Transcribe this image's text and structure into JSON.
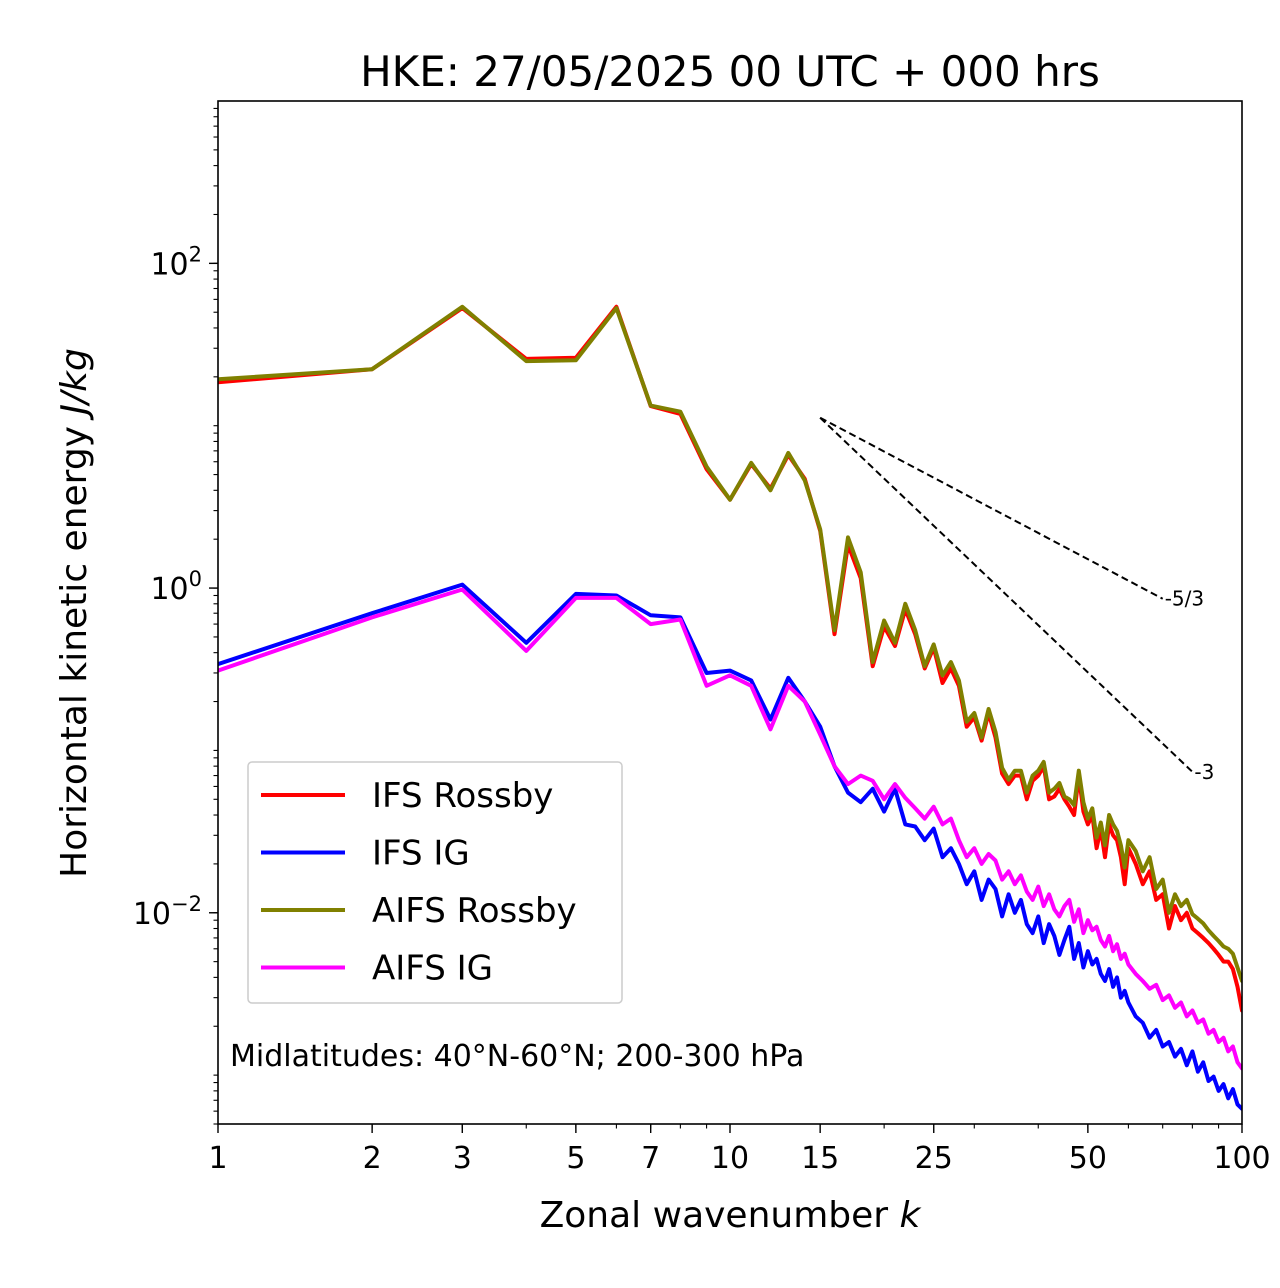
{
  "chart_data": {
    "type": "line",
    "title": "HKE: 27/05/2025 00 UTC + 000 hrs",
    "xlabel": "Zonal wavenumber ",
    "xlabel_italic": "k",
    "ylabel": "Horizontal kinetic energy ",
    "ylabel_italic": "J/kg",
    "xscale": "log",
    "yscale": "log",
    "xlim": [
      1,
      100
    ],
    "ylim": [
      0.0005,
      1000
    ],
    "x_ticks": [
      {
        "value": 1,
        "label": "1"
      },
      {
        "value": 2,
        "label": "2"
      },
      {
        "value": 3,
        "label": "3"
      },
      {
        "value": 5,
        "label": "5"
      },
      {
        "value": 7,
        "label": "7"
      },
      {
        "value": 10,
        "label": "10"
      },
      {
        "value": 15,
        "label": "15"
      },
      {
        "value": 25,
        "label": "25"
      },
      {
        "value": 50,
        "label": "50"
      },
      {
        "value": 100,
        "label": "100"
      }
    ],
    "y_ticks": [
      {
        "value": 0.01,
        "base": "10",
        "exp": "−2"
      },
      {
        "value": 1,
        "base": "10",
        "exp": "0"
      },
      {
        "value": 100,
        "base": "10",
        "exp": "2"
      }
    ],
    "grid": false,
    "legend_position": "lower-left",
    "annotation": "Midlatitudes: 40°N-60°N; 200-300 hPa",
    "reference_slopes": [
      {
        "label": "-5/3",
        "slope": -1.6667,
        "k_start": 15,
        "k_end": 70,
        "y_start": 11.2
      },
      {
        "label": "-3",
        "slope": -3,
        "k_start": 15,
        "k_end": 80,
        "y_start": 11.2
      }
    ],
    "series": [
      {
        "name": "IFS Rossby",
        "color": "#ff0000",
        "x": [
          1,
          2,
          3,
          4,
          5,
          6,
          7,
          8,
          9,
          10,
          11,
          12,
          13,
          14,
          15,
          16,
          17,
          18,
          19,
          20,
          21,
          22,
          23,
          24,
          25,
          26,
          27,
          28,
          29,
          30,
          31,
          32,
          33,
          34,
          35,
          36,
          37,
          38,
          39,
          40,
          41,
          42,
          43,
          44,
          45,
          46,
          47,
          48,
          49,
          50,
          51,
          52,
          53,
          54,
          55,
          56,
          57,
          58,
          59,
          60,
          62,
          64,
          66,
          68,
          70,
          72,
          74,
          76,
          78,
          80,
          82,
          84,
          86,
          88,
          90,
          92,
          94,
          96,
          98,
          100
        ],
        "values": [
          18.5,
          22.3,
          53.0,
          25.8,
          26.2,
          54.0,
          13.2,
          11.8,
          5.4,
          3.5,
          5.8,
          4.1,
          6.6,
          4.7,
          2.25,
          0.52,
          1.85,
          1.15,
          0.33,
          0.58,
          0.44,
          0.74,
          0.52,
          0.32,
          0.43,
          0.26,
          0.32,
          0.25,
          0.14,
          0.16,
          0.115,
          0.17,
          0.12,
          0.072,
          0.062,
          0.07,
          0.07,
          0.05,
          0.065,
          0.07,
          0.08,
          0.05,
          0.052,
          0.058,
          0.05,
          0.045,
          0.04,
          0.07,
          0.042,
          0.035,
          0.04,
          0.025,
          0.033,
          0.022,
          0.035,
          0.03,
          0.028,
          0.022,
          0.015,
          0.025,
          0.02,
          0.015,
          0.018,
          0.012,
          0.013,
          0.008,
          0.011,
          0.009,
          0.01,
          0.008,
          0.0075,
          0.007,
          0.0065,
          0.006,
          0.0055,
          0.005,
          0.005,
          0.0045,
          0.0035,
          0.0025
        ]
      },
      {
        "name": "IFS IG",
        "color": "#0000ff",
        "x": [
          1,
          2,
          3,
          4,
          5,
          6,
          7,
          8,
          9,
          10,
          11,
          12,
          13,
          14,
          15,
          16,
          17,
          18,
          19,
          20,
          21,
          22,
          23,
          24,
          25,
          26,
          27,
          28,
          29,
          30,
          31,
          32,
          33,
          34,
          35,
          36,
          37,
          38,
          39,
          40,
          41,
          42,
          43,
          44,
          45,
          46,
          47,
          48,
          49,
          50,
          51,
          52,
          53,
          54,
          55,
          56,
          57,
          58,
          59,
          60,
          62,
          64,
          66,
          68,
          70,
          72,
          74,
          76,
          78,
          80,
          82,
          84,
          86,
          88,
          90,
          92,
          94,
          96,
          98,
          100
        ],
        "values": [
          0.34,
          0.7,
          1.05,
          0.46,
          0.92,
          0.9,
          0.68,
          0.66,
          0.3,
          0.31,
          0.27,
          0.155,
          0.28,
          0.2,
          0.14,
          0.08,
          0.055,
          0.048,
          0.058,
          0.042,
          0.058,
          0.035,
          0.034,
          0.028,
          0.033,
          0.022,
          0.025,
          0.02,
          0.015,
          0.018,
          0.012,
          0.016,
          0.014,
          0.0095,
          0.013,
          0.01,
          0.012,
          0.0085,
          0.0075,
          0.0095,
          0.0065,
          0.0085,
          0.0072,
          0.0055,
          0.0068,
          0.0082,
          0.0052,
          0.0065,
          0.0046,
          0.0058,
          0.0048,
          0.0052,
          0.0042,
          0.0038,
          0.0045,
          0.0035,
          0.004,
          0.003,
          0.0033,
          0.0028,
          0.0023,
          0.0021,
          0.0017,
          0.0019,
          0.0015,
          0.0016,
          0.0013,
          0.00145,
          0.00115,
          0.0014,
          0.00105,
          0.0012,
          0.00092,
          0.00098,
          0.0008,
          0.00088,
          0.00072,
          0.00082,
          0.00066,
          0.00062
        ]
      },
      {
        "name": "AIFS Rossby",
        "color": "#808000",
        "x": [
          1,
          2,
          3,
          4,
          5,
          6,
          7,
          8,
          9,
          10,
          11,
          12,
          13,
          14,
          15,
          16,
          17,
          18,
          19,
          20,
          21,
          22,
          23,
          24,
          25,
          26,
          27,
          28,
          29,
          30,
          31,
          32,
          33,
          34,
          35,
          36,
          37,
          38,
          39,
          40,
          41,
          42,
          43,
          44,
          45,
          46,
          47,
          48,
          49,
          50,
          51,
          52,
          53,
          54,
          55,
          56,
          57,
          58,
          59,
          60,
          62,
          64,
          66,
          68,
          70,
          72,
          74,
          76,
          78,
          80,
          82,
          84,
          86,
          88,
          90,
          92,
          94,
          96,
          98,
          100
        ],
        "values": [
          19.3,
          22.3,
          54.0,
          25.0,
          25.3,
          53.0,
          13.3,
          12.2,
          5.6,
          3.5,
          5.9,
          4.0,
          6.8,
          4.6,
          2.3,
          0.55,
          2.05,
          1.25,
          0.35,
          0.63,
          0.46,
          0.8,
          0.55,
          0.33,
          0.45,
          0.29,
          0.35,
          0.27,
          0.15,
          0.17,
          0.12,
          0.18,
          0.13,
          0.078,
          0.066,
          0.075,
          0.075,
          0.055,
          0.07,
          0.075,
          0.085,
          0.055,
          0.058,
          0.063,
          0.052,
          0.05,
          0.046,
          0.075,
          0.048,
          0.038,
          0.044,
          0.029,
          0.036,
          0.026,
          0.04,
          0.035,
          0.032,
          0.026,
          0.019,
          0.028,
          0.024,
          0.018,
          0.022,
          0.014,
          0.016,
          0.01,
          0.013,
          0.011,
          0.012,
          0.0098,
          0.0092,
          0.0086,
          0.0078,
          0.0072,
          0.0067,
          0.0062,
          0.006,
          0.0056,
          0.0046,
          0.0038
        ]
      },
      {
        "name": "AIFS IG",
        "color": "#ff00ff",
        "x": [
          1,
          2,
          3,
          4,
          5,
          6,
          7,
          8,
          9,
          10,
          11,
          12,
          13,
          14,
          15,
          16,
          17,
          18,
          19,
          20,
          21,
          22,
          23,
          24,
          25,
          26,
          27,
          28,
          29,
          30,
          31,
          32,
          33,
          34,
          35,
          36,
          37,
          38,
          39,
          40,
          41,
          42,
          43,
          44,
          45,
          46,
          47,
          48,
          49,
          50,
          51,
          52,
          53,
          54,
          55,
          56,
          57,
          58,
          59,
          60,
          62,
          64,
          66,
          68,
          70,
          72,
          74,
          76,
          78,
          80,
          82,
          84,
          86,
          88,
          90,
          92,
          94,
          96,
          98,
          100
        ],
        "values": [
          0.31,
          0.66,
          0.98,
          0.41,
          0.87,
          0.87,
          0.6,
          0.64,
          0.25,
          0.29,
          0.25,
          0.135,
          0.25,
          0.2,
          0.125,
          0.08,
          0.062,
          0.07,
          0.065,
          0.05,
          0.062,
          0.051,
          0.044,
          0.038,
          0.045,
          0.035,
          0.038,
          0.028,
          0.022,
          0.025,
          0.02,
          0.023,
          0.021,
          0.016,
          0.018,
          0.015,
          0.017,
          0.0135,
          0.012,
          0.0145,
          0.011,
          0.013,
          0.0105,
          0.0095,
          0.011,
          0.012,
          0.0088,
          0.0105,
          0.0075,
          0.009,
          0.0078,
          0.0082,
          0.0068,
          0.0062,
          0.0072,
          0.0058,
          0.0064,
          0.0052,
          0.0056,
          0.0048,
          0.0042,
          0.0038,
          0.0034,
          0.0036,
          0.0029,
          0.0031,
          0.0026,
          0.0028,
          0.0023,
          0.0025,
          0.0021,
          0.0022,
          0.0018,
          0.0019,
          0.0016,
          0.0017,
          0.0014,
          0.0015,
          0.0012,
          0.0011
        ]
      }
    ]
  }
}
